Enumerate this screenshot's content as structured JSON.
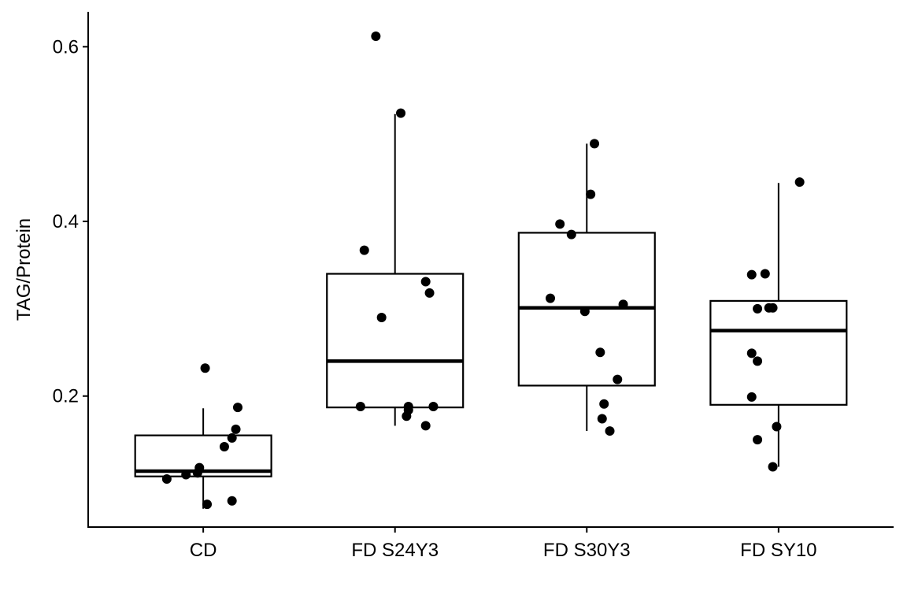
{
  "chart_data": {
    "type": "box",
    "title": "",
    "xlabel": "",
    "ylabel": "TAG/Protein",
    "ylim": [
      0.05,
      0.64
    ],
    "yticks": [
      0.2,
      0.4,
      0.6
    ],
    "ytick_labels": [
      "0.2",
      "0.4",
      "0.6"
    ],
    "grid": false,
    "categories": [
      "CD",
      "FD S24Y3",
      "FD S30Y3",
      "FD SY10"
    ],
    "boxes": [
      {
        "q1": 0.108,
        "median": 0.114,
        "q3": 0.155,
        "whisker_low": 0.071,
        "whisker_high": 0.186
      },
      {
        "q1": 0.187,
        "median": 0.24,
        "q3": 0.34,
        "whisker_low": 0.166,
        "whisker_high": 0.523
      },
      {
        "q1": 0.212,
        "median": 0.301,
        "q3": 0.387,
        "whisker_low": 0.16,
        "whisker_high": 0.489
      },
      {
        "q1": 0.19,
        "median": 0.275,
        "q3": 0.309,
        "whisker_low": 0.119,
        "whisker_high": 0.444
      }
    ],
    "points": [
      [
        [
          0.01,
          0.232
        ],
        [
          0.18,
          0.187
        ],
        [
          0.17,
          0.162
        ],
        [
          0.15,
          0.152
        ],
        [
          0.11,
          0.142
        ],
        [
          -0.02,
          0.118
        ],
        [
          -0.03,
          0.112
        ],
        [
          -0.09,
          0.11
        ],
        [
          -0.19,
          0.105
        ],
        [
          0.15,
          0.08
        ],
        [
          0.02,
          0.076
        ]
      ],
      [
        [
          -0.1,
          0.612
        ],
        [
          0.03,
          0.524
        ],
        [
          -0.16,
          0.367
        ],
        [
          0.16,
          0.331
        ],
        [
          0.18,
          0.318
        ],
        [
          -0.07,
          0.29
        ],
        [
          -0.18,
          0.188
        ],
        [
          0.07,
          0.188
        ],
        [
          0.2,
          0.188
        ],
        [
          0.07,
          0.184
        ],
        [
          0.06,
          0.177
        ],
        [
          0.16,
          0.166
        ]
      ],
      [
        [
          0.04,
          0.489
        ],
        [
          0.02,
          0.431
        ],
        [
          -0.14,
          0.397
        ],
        [
          -0.08,
          0.385
        ],
        [
          -0.19,
          0.312
        ],
        [
          0.19,
          0.305
        ],
        [
          -0.01,
          0.297
        ],
        [
          0.07,
          0.25
        ],
        [
          0.16,
          0.219
        ],
        [
          0.09,
          0.191
        ],
        [
          0.08,
          0.174
        ],
        [
          0.12,
          0.16
        ]
      ],
      [
        [
          0.11,
          0.445
        ],
        [
          -0.14,
          0.339
        ],
        [
          -0.07,
          0.34
        ],
        [
          -0.11,
          0.3
        ],
        [
          -0.05,
          0.301
        ],
        [
          -0.03,
          0.301
        ],
        [
          -0.14,
          0.249
        ],
        [
          -0.11,
          0.24
        ],
        [
          -0.14,
          0.199
        ],
        [
          -0.01,
          0.165
        ],
        [
          -0.11,
          0.15
        ],
        [
          -0.03,
          0.119
        ]
      ]
    ]
  }
}
